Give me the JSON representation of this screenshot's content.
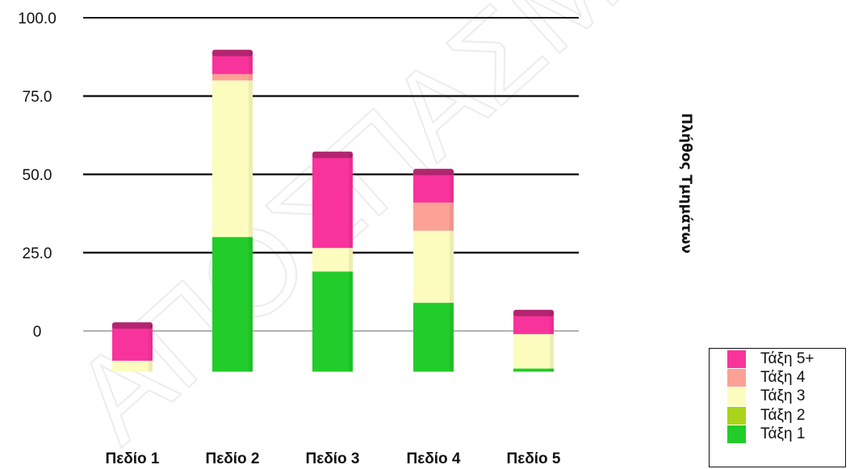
{
  "watermark": "ΑΠΟΣΠΑΣΜΑ",
  "chart_data": {
    "type": "bar",
    "stacked": true,
    "categories": [
      "Πεδίο 1",
      "Πεδίο 2",
      "Πεδίο 3",
      "Πεδίο 4",
      "Πεδίο 5"
    ],
    "ylabel": "Πλήθος Τμημάτων",
    "ylim": [
      -13,
      100
    ],
    "yticks": [
      {
        "value": 0,
        "label": "0"
      },
      {
        "value": 25,
        "label": "25.0"
      },
      {
        "value": 50,
        "label": "50.0"
      },
      {
        "value": 75,
        "label": "75.0"
      },
      {
        "value": 100,
        "label": "100.0"
      }
    ],
    "baseline": -13,
    "grid": true,
    "legend_position": "bottom-right",
    "series": [
      {
        "name": "Τάξη 1",
        "color": "#22cc2a",
        "values": [
          0,
          43,
          32,
          22,
          1
        ]
      },
      {
        "name": "Τάξη 2",
        "color": "#aad41a",
        "values": [
          0,
          0,
          0,
          0,
          0
        ]
      },
      {
        "name": "Τάξη 3",
        "color": "#fcfcbe",
        "values": [
          3.5,
          50,
          7.5,
          23,
          11
        ]
      },
      {
        "name": "Τάξη 4",
        "color": "#fba195",
        "values": [
          0,
          2,
          0,
          9,
          0
        ]
      },
      {
        "name": "Τάξη 5+",
        "color": "#f9339c",
        "values": [
          11.5,
          7,
          30,
          10,
          7
        ]
      }
    ]
  }
}
